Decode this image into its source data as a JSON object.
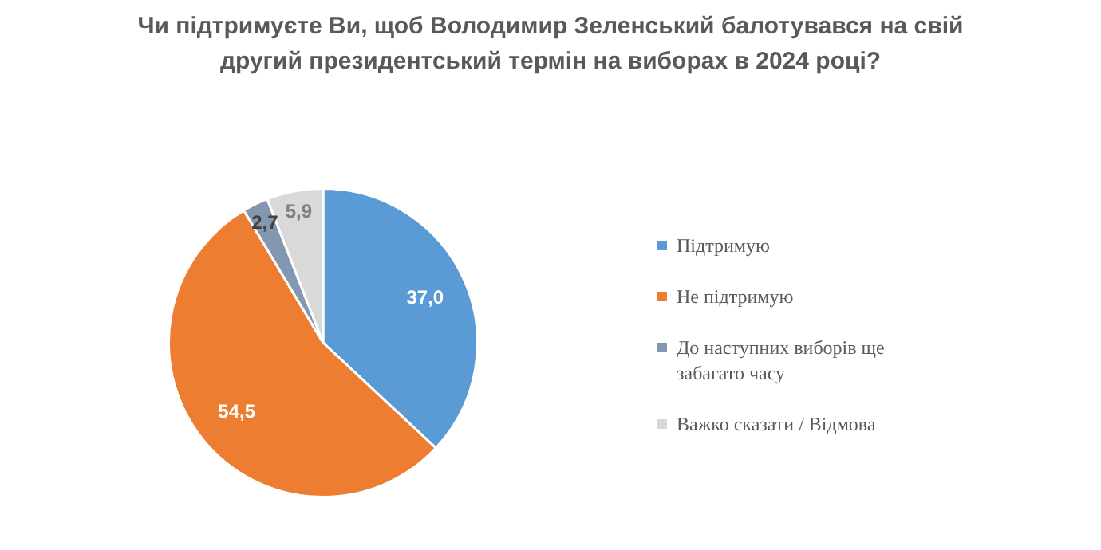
{
  "chart_data": {
    "type": "pie",
    "title": "Чи підтримуєте Ви, щоб Володимир Зеленський балотувався на свій другий президентський термін на виборах в 2024 році?",
    "categories": [
      "Підтримую",
      "Не підтримую",
      "До наступних виборів ще забагато часу",
      "Важко сказати / Відмова"
    ],
    "values": [
      37.0,
      54.5,
      2.7,
      5.9
    ],
    "value_labels": [
      "37,0",
      "54,5",
      "2,7",
      "5,9"
    ],
    "colors": [
      "#5b9bd5",
      "#ed7d31",
      "#8497b0",
      "#d9d9d9"
    ],
    "legend": "right"
  }
}
